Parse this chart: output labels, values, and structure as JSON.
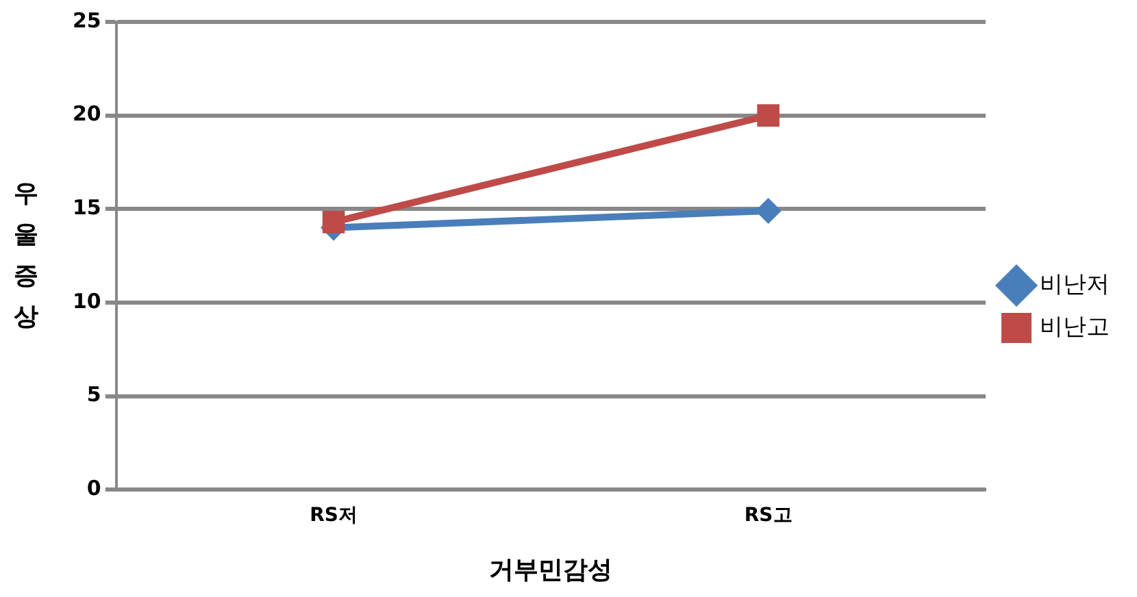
{
  "chart_data": {
    "type": "line",
    "xlabel": "거부민감성",
    "ylabel": "우울증상",
    "categories": [
      "RS저",
      "RS고"
    ],
    "series": [
      {
        "name": "비난저",
        "color": "#4a7ebb",
        "values": [
          14.0,
          14.9
        ],
        "marker": "diamond"
      },
      {
        "name": "비난고",
        "color": "#be4b48",
        "values": [
          14.3,
          20.0
        ],
        "marker": "square"
      }
    ],
    "ylim": [
      0,
      25
    ],
    "yticks": [
      0,
      5,
      10,
      15,
      20,
      25
    ],
    "grid": "y",
    "legend": "right"
  }
}
